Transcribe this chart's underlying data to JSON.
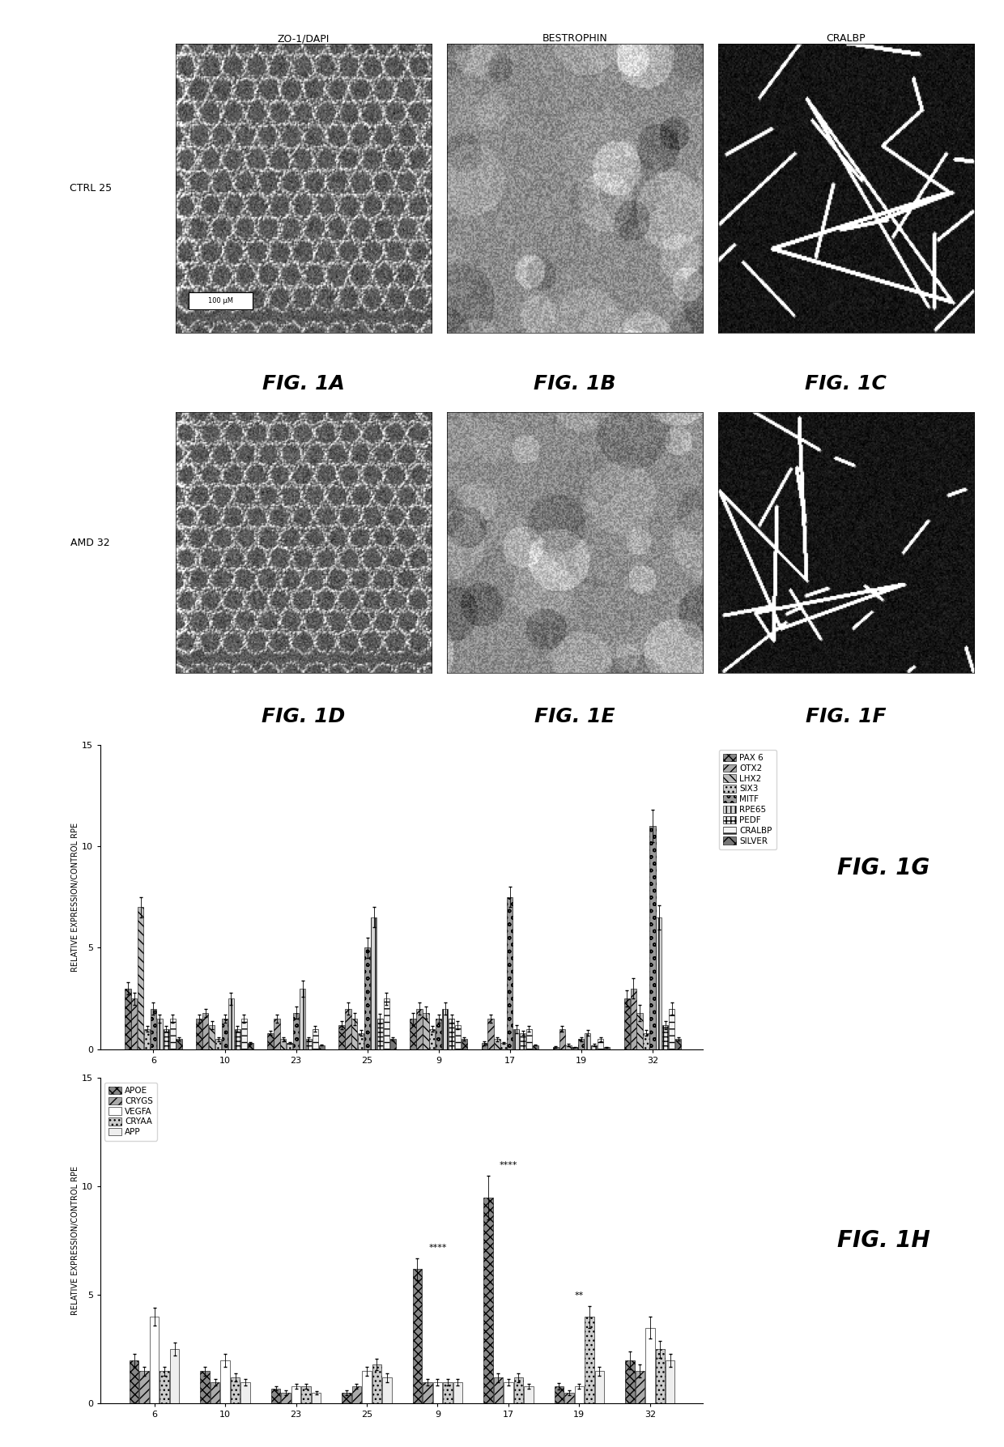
{
  "row_labels": [
    "CTRL 25",
    "AMD 32"
  ],
  "col_labels": [
    "ZO-1/DAPI",
    "BESTROPHIN",
    "CRALBP"
  ],
  "scale_bar": "100 μM",
  "fig_img_labels": [
    "FIG. 1A",
    "FIG. 1B",
    "FIG. 1C",
    "FIG. 1D",
    "FIG. 1E",
    "FIG. 1F"
  ],
  "fig1g_title": "FIG. 1G",
  "fig1h_title": "FIG. 1H",
  "ylabel": "RELATIVE EXPRESSION/CONTROL RPE",
  "xlabel_groups": [
    "6",
    "10",
    "23",
    "25",
    "9",
    "17",
    "19",
    "32"
  ],
  "fig1g_genes": [
    "PAX 6",
    "OTX2",
    "LHX2",
    "SIX3",
    "MITF",
    "RPE65",
    "PEDF",
    "CRALBP",
    "SILVER"
  ],
  "fig1g_data": {
    "PAX 6": [
      3.0,
      1.5,
      0.8,
      1.2,
      1.5,
      0.3,
      0.1,
      2.5
    ],
    "OTX2": [
      2.5,
      1.8,
      1.5,
      2.0,
      2.0,
      1.5,
      1.0,
      3.0
    ],
    "LHX2": [
      7.0,
      1.2,
      0.5,
      1.5,
      1.8,
      0.5,
      0.2,
      1.8
    ],
    "SIX3": [
      1.0,
      0.5,
      0.3,
      0.8,
      1.0,
      0.3,
      0.1,
      0.8
    ],
    "MITF": [
      2.0,
      1.5,
      1.8,
      5.0,
      1.5,
      7.5,
      0.5,
      11.0
    ],
    "RPE65": [
      1.5,
      2.5,
      3.0,
      6.5,
      2.0,
      1.0,
      0.8,
      6.5
    ],
    "PEDF": [
      1.0,
      1.0,
      0.5,
      1.5,
      1.5,
      0.8,
      0.2,
      1.2
    ],
    "CRALBP": [
      1.5,
      1.5,
      1.0,
      2.5,
      1.2,
      1.0,
      0.5,
      2.0
    ],
    "SILVER": [
      0.5,
      0.3,
      0.2,
      0.5,
      0.5,
      0.2,
      0.1,
      0.5
    ]
  },
  "fig1g_errors": {
    "PAX 6": [
      0.3,
      0.2,
      0.1,
      0.2,
      0.3,
      0.1,
      0.05,
      0.4
    ],
    "OTX2": [
      0.3,
      0.2,
      0.2,
      0.3,
      0.3,
      0.2,
      0.15,
      0.5
    ],
    "LHX2": [
      0.5,
      0.2,
      0.1,
      0.3,
      0.3,
      0.1,
      0.05,
      0.4
    ],
    "SIX3": [
      0.15,
      0.1,
      0.05,
      0.15,
      0.15,
      0.05,
      0.02,
      0.15
    ],
    "MITF": [
      0.3,
      0.2,
      0.3,
      0.5,
      0.2,
      0.5,
      0.1,
      0.8
    ],
    "RPE65": [
      0.2,
      0.3,
      0.4,
      0.5,
      0.3,
      0.2,
      0.15,
      0.6
    ],
    "PEDF": [
      0.15,
      0.15,
      0.1,
      0.25,
      0.2,
      0.1,
      0.05,
      0.2
    ],
    "CRALBP": [
      0.2,
      0.2,
      0.15,
      0.3,
      0.2,
      0.15,
      0.1,
      0.3
    ],
    "SILVER": [
      0.08,
      0.05,
      0.03,
      0.08,
      0.08,
      0.03,
      0.02,
      0.08
    ]
  },
  "fig1h_genes": [
    "APOE",
    "CRYGS",
    "VEGFA",
    "CRYAA",
    "APP"
  ],
  "fig1h_data": {
    "APOE": [
      2.0,
      1.5,
      0.7,
      0.5,
      6.2,
      9.5,
      0.8,
      2.0
    ],
    "CRYGS": [
      1.5,
      1.0,
      0.5,
      0.8,
      1.0,
      1.2,
      0.5,
      1.5
    ],
    "VEGFA": [
      4.0,
      2.0,
      0.8,
      1.5,
      1.0,
      1.0,
      0.8,
      3.5
    ],
    "CRYAA": [
      1.5,
      1.2,
      0.8,
      1.8,
      1.0,
      1.2,
      4.0,
      2.5
    ],
    "APP": [
      2.5,
      1.0,
      0.5,
      1.2,
      1.0,
      0.8,
      1.5,
      2.0
    ]
  },
  "fig1h_errors": {
    "APOE": [
      0.3,
      0.2,
      0.1,
      0.1,
      0.5,
      1.0,
      0.15,
      0.4
    ],
    "CRYGS": [
      0.2,
      0.15,
      0.1,
      0.12,
      0.15,
      0.2,
      0.1,
      0.3
    ],
    "VEGFA": [
      0.4,
      0.3,
      0.12,
      0.2,
      0.15,
      0.15,
      0.12,
      0.5
    ],
    "CRYAA": [
      0.2,
      0.18,
      0.12,
      0.25,
      0.15,
      0.2,
      0.5,
      0.4
    ],
    "APP": [
      0.3,
      0.15,
      0.08,
      0.2,
      0.15,
      0.12,
      0.2,
      0.3
    ]
  },
  "fig1h_annot_groups": {
    "4": "****",
    "5": "****",
    "6": "**"
  },
  "ylim": [
    0,
    15
  ],
  "yticks": [
    0,
    5,
    10,
    15
  ],
  "background_color": "#ffffff"
}
